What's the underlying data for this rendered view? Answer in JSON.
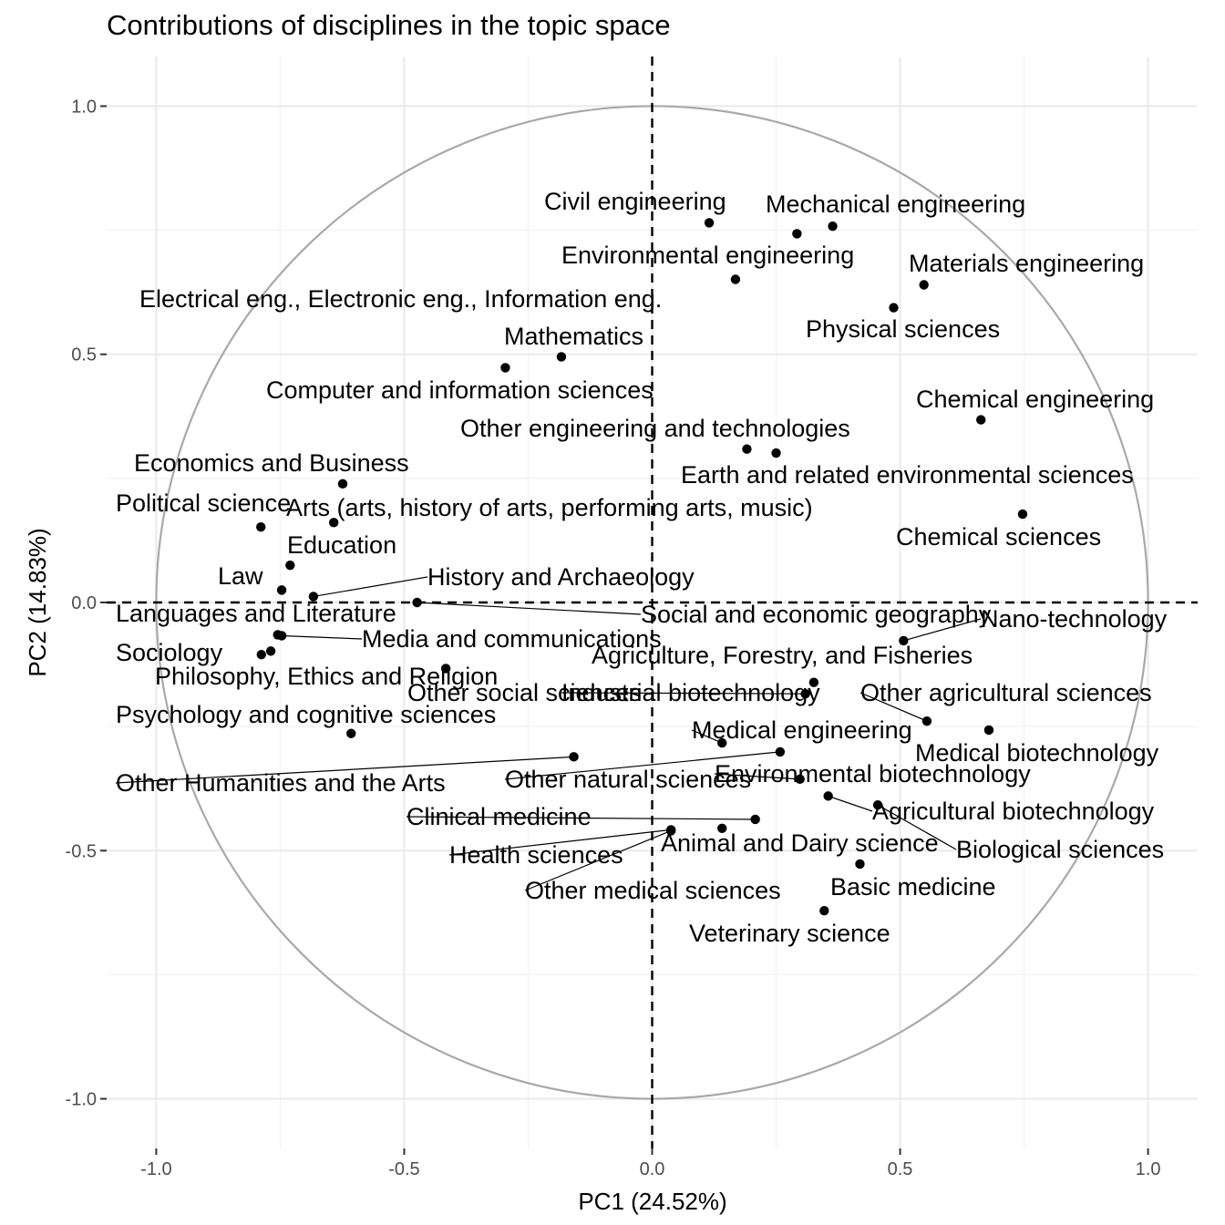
{
  "chart_data": {
    "type": "scatter",
    "title": "Contributions of disciplines in the topic space",
    "xlabel": "PC1 (24.52%)",
    "ylabel": "PC2 (14.83%)",
    "xlim": [
      -1.1,
      1.1
    ],
    "ylim": [
      -1.1,
      1.1
    ],
    "xticks": [
      -1.0,
      -0.5,
      0.0,
      0.5,
      1.0
    ],
    "xtick_labels": [
      "-1.0",
      "-0.5",
      "0.0",
      "0.5",
      "1.0"
    ],
    "yticks": [
      -1.0,
      -0.5,
      0.0,
      0.5,
      1.0
    ],
    "ytick_labels": [
      "-1.0",
      "-0.5",
      "0.0",
      "0.5",
      "1.0"
    ],
    "grid": true,
    "unit_circle": true,
    "reference_lines": {
      "x": 0,
      "y": 0,
      "style": "dashed"
    },
    "point_color": "#000000",
    "circle_color": "#a9a9a9",
    "points": [
      {
        "label": "Civil engineering",
        "x": 0.115,
        "y": 0.765
      },
      {
        "label": "Mechanical engineering",
        "x": 0.364,
        "y": 0.758
      },
      {
        "label": "Environmental engineering",
        "x": 0.292,
        "y": 0.743
      },
      {
        "label": "Materials engineering",
        "x": 0.548,
        "y": 0.64
      },
      {
        "label": "Electrical eng., Electronic eng., Information eng.",
        "x": 0.168,
        "y": 0.651
      },
      {
        "label": "Physical sciences",
        "x": 0.487,
        "y": 0.594
      },
      {
        "label": "Mathematics",
        "x": -0.183,
        "y": 0.495
      },
      {
        "label": "Computer and information sciences",
        "x": -0.296,
        "y": 0.473
      },
      {
        "label": "Chemical engineering",
        "x": 0.663,
        "y": 0.368
      },
      {
        "label": "Other engineering and technologies",
        "x": 0.191,
        "y": 0.309
      },
      {
        "label": "Earth and related environmental sciences",
        "x": 0.25,
        "y": 0.301
      },
      {
        "label": "Economics and Business",
        "x": -0.624,
        "y": 0.239
      },
      {
        "label": "Chemical sciences",
        "x": 0.747,
        "y": 0.178
      },
      {
        "label": "Political science",
        "x": -0.789,
        "y": 0.152
      },
      {
        "label": "Arts (arts, history of arts, performing arts, music)",
        "x": -0.642,
        "y": 0.161
      },
      {
        "label": "Education",
        "x": -0.73,
        "y": 0.075
      },
      {
        "label": "Law",
        "x": -0.747,
        "y": 0.025
      },
      {
        "label": "History and Archaeology",
        "x": -0.683,
        "y": 0.012
      },
      {
        "label": "Social and economic geography",
        "x": -0.474,
        "y": 0.0
      },
      {
        "label": "Languages and Literature",
        "x": -0.755,
        "y": -0.065
      },
      {
        "label": "Media and communications",
        "x": -0.747,
        "y": -0.067
      },
      {
        "label": "Nano-technology",
        "x": 0.507,
        "y": -0.077
      },
      {
        "label": "Sociology",
        "x": -0.788,
        "y": -0.105
      },
      {
        "label": "Philosophy, Ethics and Religion",
        "x": -0.769,
        "y": -0.098
      },
      {
        "label": "Other social sciences",
        "x": -0.416,
        "y": -0.133
      },
      {
        "label": "Agriculture, Forestry, and Fisheries",
        "x": 0.326,
        "y": -0.161
      },
      {
        "label": "Industrial biotechnology",
        "x": 0.309,
        "y": -0.184
      },
      {
        "label": "Other agricultural sciences",
        "x": 0.554,
        "y": -0.239
      },
      {
        "label": "Medical biotechnology",
        "x": 0.679,
        "y": -0.257
      },
      {
        "label": "Psychology and cognitive sciences",
        "x": -0.607,
        "y": -0.264
      },
      {
        "label": "Medical engineering",
        "x": 0.141,
        "y": -0.283
      },
      {
        "label": "Other natural sciences",
        "x": 0.258,
        "y": -0.301
      },
      {
        "label": "Other Humanities and the Arts",
        "x": -0.158,
        "y": -0.311
      },
      {
        "label": "Environmental biotechnology",
        "x": 0.298,
        "y": -0.356
      },
      {
        "label": "Agricultural biotechnology",
        "x": 0.355,
        "y": -0.39
      },
      {
        "label": "Biological sciences",
        "x": 0.455,
        "y": -0.408
      },
      {
        "label": "Clinical medicine",
        "x": 0.208,
        "y": -0.437
      },
      {
        "label": "Animal and Dairy science",
        "x": 0.141,
        "y": -0.455
      },
      {
        "label": "Health sciences",
        "x": 0.038,
        "y": -0.458
      },
      {
        "label": "Basic medicine",
        "x": 0.419,
        "y": -0.527
      },
      {
        "label": "Other medical sciences",
        "x": 0.038,
        "y": -0.46
      },
      {
        "label": "Veterinary science",
        "x": 0.347,
        "y": -0.621
      }
    ]
  }
}
